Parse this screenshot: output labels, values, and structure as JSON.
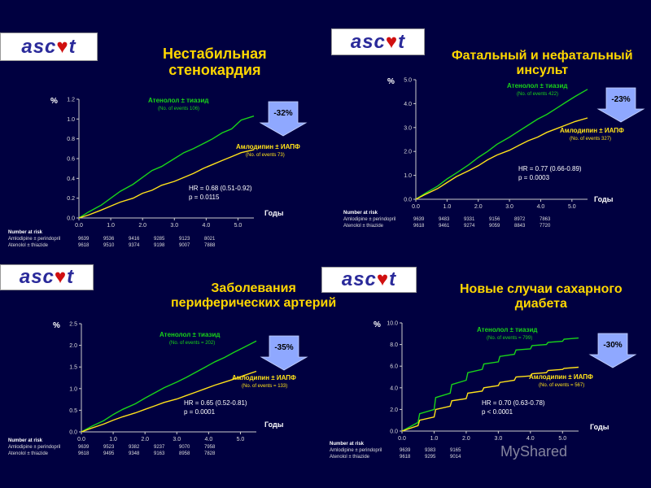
{
  "logo_text": {
    "pre": "asc",
    "heart": "♥",
    "post": "t"
  },
  "risk_header": "Number at risk",
  "colors": {
    "background": "#000040",
    "green": "#19d419",
    "yellow": "#ffe21a",
    "title": "#ffd700",
    "arrow": "#8fa8ff"
  },
  "watermark": "MyShared",
  "panels": [
    {
      "title": [
        "Нестабильная",
        "стенокардия"
      ],
      "ylabel": "%",
      "xlabel": "Годы",
      "green_label": "Атенолол ± тиазид",
      "green_events": "(No. of events 106)",
      "yellow_label": "Амлодипин ± ИАПФ",
      "yellow_events": "(No. of events 73)",
      "reduction": "-32%",
      "hr": "HR = 0.68 (0.51-0.92)",
      "p": "p = 0.0115",
      "risk": {
        "rows": [
          {
            "label": "Amlodipine ± perindopril",
            "values": [
              "9639",
              "9536",
              "9416",
              "9285",
              "9123",
              "8021"
            ]
          },
          {
            "label": "Atenolol ± thiazide",
            "values": [
              "9618",
              "9510",
              "9374",
              "9198",
              "9007",
              "7888"
            ]
          }
        ]
      },
      "chart_data": {
        "type": "line",
        "yticks": [
          "0.0",
          "0.2",
          "0.4",
          "0.6",
          "0.8",
          "1.0",
          "1.2"
        ],
        "xticks": [
          "0.0",
          "1.0",
          "2.0",
          "3.0",
          "4.0",
          "5.0"
        ],
        "ylim": [
          0,
          1.2
        ],
        "xlim": [
          0,
          5.5
        ],
        "series": [
          {
            "name": "Атенолол ± тиазид",
            "color": "green",
            "x": [
              0,
              0.3,
              0.7,
              1.0,
              1.3,
              1.7,
              2.0,
              2.3,
              2.6,
              3.0,
              3.3,
              3.6,
              3.9,
              4.2,
              4.5,
              4.8,
              5.1,
              5.5
            ],
            "y": [
              0,
              0.06,
              0.13,
              0.2,
              0.27,
              0.34,
              0.41,
              0.48,
              0.52,
              0.6,
              0.66,
              0.7,
              0.75,
              0.8,
              0.86,
              0.9,
              0.99,
              1.03
            ]
          },
          {
            "name": "Амлодипин ± ИАПФ",
            "color": "yellow",
            "x": [
              0,
              0.3,
              0.7,
              1.0,
              1.3,
              1.7,
              2.0,
              2.3,
              2.6,
              3.0,
              3.3,
              3.6,
              3.9,
              4.2,
              4.5,
              4.8,
              5.1,
              5.5
            ],
            "y": [
              0,
              0.03,
              0.08,
              0.12,
              0.16,
              0.2,
              0.25,
              0.28,
              0.33,
              0.37,
              0.41,
              0.45,
              0.5,
              0.54,
              0.58,
              0.62,
              0.66,
              0.69
            ]
          }
        ]
      }
    },
    {
      "title": [
        "Фатальный и нефатальный",
        "инсульт"
      ],
      "ylabel": "%",
      "xlabel": "Годы",
      "green_label": "Атенолол ± тиазид",
      "green_events": "(No. of events 422)",
      "yellow_label": "Амлодипин ± ИАПФ",
      "yellow_events": "(No. of events 327)",
      "reduction": "-23%",
      "hr": "HR = 0.77 (0.66-0.89)",
      "p": "p = 0.0003",
      "risk": {
        "rows": [
          {
            "label": "Amlodipine ± perindopril",
            "values": [
              "9639",
              "9483",
              "9331",
              "9156",
              "8972",
              "7863"
            ]
          },
          {
            "label": "Atenolol ± thiazide",
            "values": [
              "9618",
              "9461",
              "9274",
              "9059",
              "8843",
              "7720"
            ]
          }
        ]
      },
      "chart_data": {
        "type": "line",
        "yticks": [
          "0.0",
          "1.0",
          "2.0",
          "3.0",
          "4.0",
          "5.0"
        ],
        "xticks": [
          "0.0",
          "1.0",
          "2.0",
          "3.0",
          "4.0",
          "5.0"
        ],
        "ylim": [
          0,
          5.0
        ],
        "xlim": [
          0,
          5.5
        ],
        "series": [
          {
            "name": "Атенолол ± тиазид",
            "color": "green",
            "x": [
              0,
              0.3,
              0.7,
              1.0,
              1.3,
              1.7,
              2.0,
              2.3,
              2.6,
              3.0,
              3.3,
              3.6,
              3.9,
              4.2,
              4.5,
              4.8,
              5.1,
              5.5
            ],
            "y": [
              0,
              0.25,
              0.55,
              0.85,
              1.1,
              1.45,
              1.75,
              2.0,
              2.3,
              2.6,
              2.85,
              3.1,
              3.35,
              3.55,
              3.8,
              4.05,
              4.3,
              4.6
            ]
          },
          {
            "name": "Амлодипин ± ИАПФ",
            "color": "yellow",
            "x": [
              0,
              0.3,
              0.7,
              1.0,
              1.3,
              1.7,
              2.0,
              2.3,
              2.6,
              3.0,
              3.3,
              3.6,
              3.9,
              4.2,
              4.5,
              4.8,
              5.1,
              5.5
            ],
            "y": [
              0,
              0.2,
              0.45,
              0.7,
              0.95,
              1.2,
              1.4,
              1.65,
              1.85,
              2.05,
              2.25,
              2.45,
              2.6,
              2.8,
              2.95,
              3.1,
              3.25,
              3.4
            ]
          }
        ]
      }
    },
    {
      "title": [
        "Заболевания",
        "периферических артерий"
      ],
      "ylabel": "%",
      "xlabel": "Годы",
      "green_label": "Атенолол ± тиазид",
      "green_events": "(No. of events = 202)",
      "yellow_label": "Амлодипин ± ИАПФ",
      "yellow_events": "(No. of events = 133)",
      "reduction": "-35%",
      "hr": "HR = 0.65 (0.52-0.81)",
      "p": "p = 0.0001",
      "risk": {
        "rows": [
          {
            "label": "Amlodipine ± perindopril",
            "values": [
              "9639",
              "9523",
              "9382",
              "9237",
              "9070",
              "7958"
            ]
          },
          {
            "label": "Atenolol ± thiazide",
            "values": [
              "9618",
              "9495",
              "9348",
              "9163",
              "8958",
              "7828"
            ]
          }
        ]
      },
      "chart_data": {
        "type": "line",
        "yticks": [
          "0.0",
          "0.5",
          "1.0",
          "1.5",
          "2.0",
          "2.5"
        ],
        "xticks": [
          "0.0",
          "1.0",
          "2.0",
          "3.0",
          "4.0",
          "5.0"
        ],
        "ylim": [
          0,
          2.5
        ],
        "xlim": [
          0,
          5.5
        ],
        "series": [
          {
            "name": "Атенолол ± тиазид",
            "color": "green",
            "x": [
              0,
              0.3,
              0.7,
              1.0,
              1.3,
              1.7,
              2.0,
              2.3,
              2.6,
              3.0,
              3.3,
              3.6,
              3.9,
              4.2,
              4.5,
              4.8,
              5.1,
              5.5
            ],
            "y": [
              0,
              0.12,
              0.26,
              0.4,
              0.52,
              0.65,
              0.78,
              0.9,
              1.02,
              1.15,
              1.26,
              1.38,
              1.5,
              1.62,
              1.72,
              1.84,
              1.95,
              2.1
            ]
          },
          {
            "name": "Амлодипин ± ИАПФ",
            "color": "yellow",
            "x": [
              0,
              0.3,
              0.7,
              1.0,
              1.3,
              1.7,
              2.0,
              2.3,
              2.6,
              3.0,
              3.3,
              3.6,
              3.9,
              4.2,
              4.5,
              4.8,
              5.1,
              5.5
            ],
            "y": [
              0,
              0.08,
              0.18,
              0.27,
              0.35,
              0.44,
              0.52,
              0.6,
              0.68,
              0.76,
              0.84,
              0.92,
              1.0,
              1.08,
              1.15,
              1.22,
              1.3,
              1.4
            ]
          }
        ]
      }
    },
    {
      "title": [
        "Новые случаи сахарного",
        "диабета"
      ],
      "ylabel": "%",
      "xlabel": "Годы",
      "green_label": "Атенолол ± тиазид",
      "green_events": "(No. of events = 799)",
      "yellow_label": "Амлодипин ± ИАПФ",
      "yellow_events": "(No. of events = 567)",
      "reduction": "-30%",
      "hr": "HR = 0.70 (0.63-0.78)",
      "p": "p < 0.0001",
      "risk": {
        "rows": [
          {
            "label": "Amlodipine ± perindopril",
            "values": [
              "9639",
              "9383",
              "9165"
            ]
          },
          {
            "label": "Atenolol ± thiazide",
            "values": [
              "9618",
              "9295",
              "9014"
            ]
          }
        ]
      },
      "chart_data": {
        "type": "line",
        "yticks": [
          "0.0",
          "2.0",
          "4.0",
          "6.0",
          "8.0",
          "10.0"
        ],
        "xticks": [
          "0.0",
          "1.0",
          "2.0",
          "3.0",
          "4.0",
          "5.0"
        ],
        "ylim": [
          0,
          10.0
        ],
        "xlim": [
          0,
          5.5
        ],
        "series": [
          {
            "name": "Атенолол ± тиазид",
            "color": "green",
            "x": [
              0,
              0.5,
              0.55,
              1.0,
              1.05,
              1.5,
              1.55,
              2.0,
              2.05,
              2.5,
              2.55,
              3.0,
              3.05,
              3.5,
              3.55,
              4.0,
              4.05,
              4.5,
              4.55,
              5.0,
              5.05,
              5.5
            ],
            "y": [
              0,
              0.8,
              1.6,
              2.0,
              3.1,
              3.5,
              4.3,
              4.7,
              5.4,
              5.7,
              6.2,
              6.4,
              6.9,
              7.1,
              7.5,
              7.6,
              7.9,
              8.0,
              8.2,
              8.3,
              8.5,
              8.6
            ]
          },
          {
            "name": "Амлодипин ± ИАПФ",
            "color": "yellow",
            "x": [
              0,
              0.5,
              0.55,
              1.0,
              1.05,
              1.5,
              1.55,
              2.0,
              2.05,
              2.5,
              2.55,
              3.0,
              3.05,
              3.5,
              3.55,
              4.0,
              4.05,
              4.5,
              4.55,
              5.0,
              5.05,
              5.5
            ],
            "y": [
              0,
              0.5,
              1.0,
              1.3,
              2.0,
              2.3,
              2.8,
              3.0,
              3.5,
              3.7,
              4.0,
              4.2,
              4.5,
              4.7,
              5.0,
              5.1,
              5.3,
              5.4,
              5.6,
              5.7,
              5.8,
              5.9
            ]
          }
        ]
      }
    }
  ]
}
